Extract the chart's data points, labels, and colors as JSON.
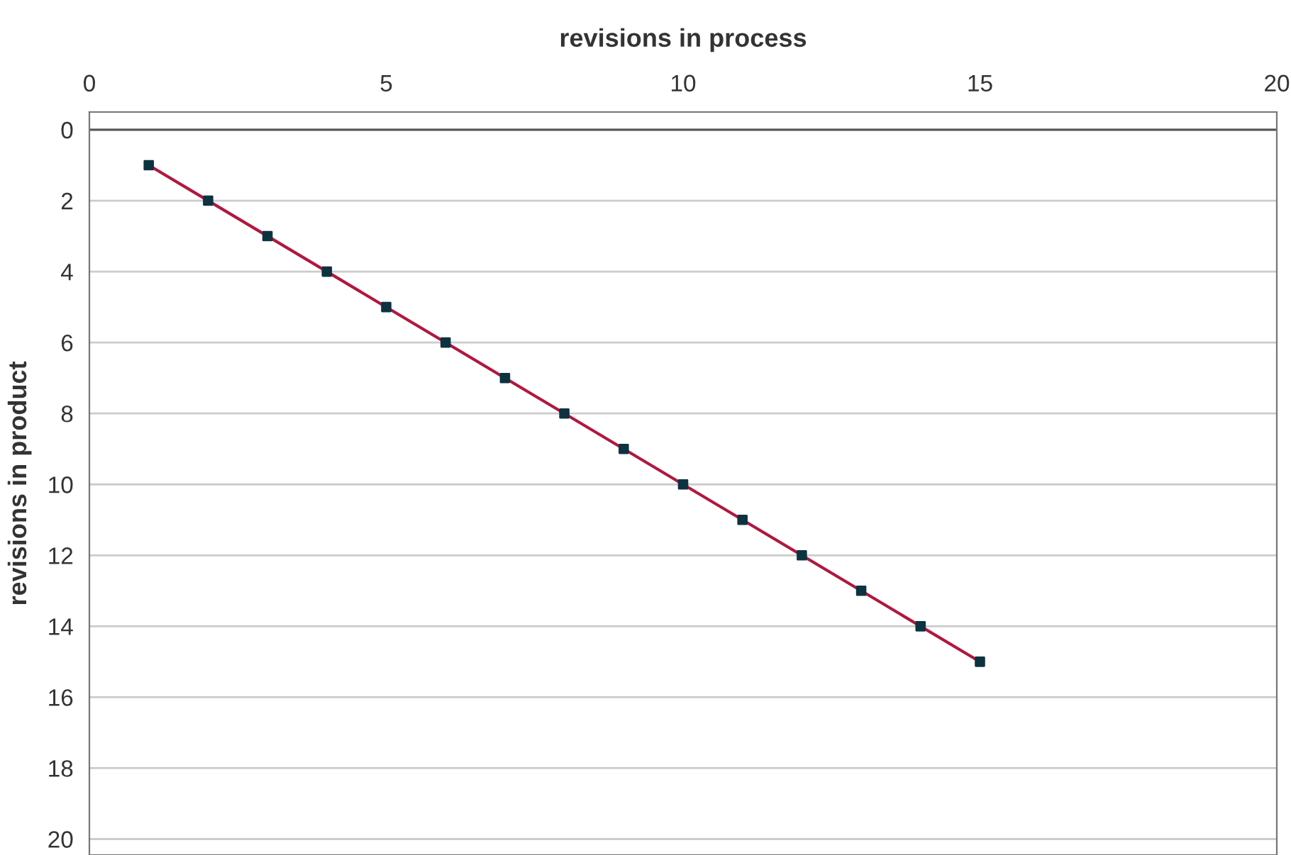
{
  "chart_data": {
    "type": "scatter",
    "xlabel": "revisions in process",
    "ylabel": "revisions in product",
    "xlim": [
      0,
      20
    ],
    "xticks": [
      0,
      5,
      10,
      15,
      20
    ],
    "ylim": [
      20.45,
      -0.5
    ],
    "yticks": [
      0,
      2,
      4,
      6,
      8,
      10,
      12,
      14,
      16,
      18,
      20
    ],
    "grid": "y",
    "ref_lines": [
      {
        "axis": "y",
        "value": 0,
        "color": "#555555"
      }
    ],
    "series": [
      {
        "type": "line",
        "color": "#b0183f",
        "marker": "none",
        "x": [
          1,
          15
        ],
        "values": [
          1,
          15
        ]
      },
      {
        "color": "#0d3340",
        "marker": "square",
        "x": [
          1,
          2,
          3,
          4,
          5,
          6,
          7,
          8,
          9,
          10,
          11,
          12,
          13,
          14,
          15
        ],
        "values": [
          1,
          2,
          3,
          4,
          5,
          6,
          7,
          8,
          9,
          10,
          11,
          12,
          13,
          14,
          15
        ]
      }
    ]
  }
}
